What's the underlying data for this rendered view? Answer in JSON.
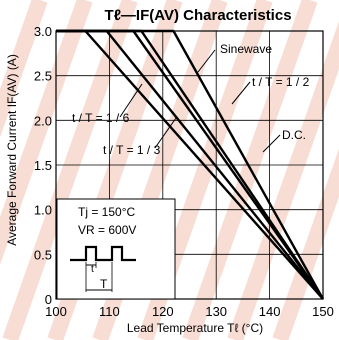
{
  "chart_data": {
    "type": "line",
    "title": "Tℓ—IF(AV)  Characteristics",
    "xlabel": "Lead Temperature  Tℓ (°C)",
    "ylabel": "Average Forward Current  IF(AV) (A)",
    "xlim": [
      100,
      150
    ],
    "ylim": [
      0,
      3.0
    ],
    "x_ticks": [
      "100",
      "110",
      "120",
      "130",
      "140",
      "150"
    ],
    "y_ticks": [
      "0",
      "0.5",
      "1.0",
      "1.5",
      "2.0",
      "2.5",
      "3.0"
    ],
    "grid": true,
    "series": [
      {
        "name": "t/T = 1/6",
        "points": [
          [
            100,
            3.0
          ],
          [
            105.5,
            3.0
          ],
          [
            150,
            0
          ]
        ]
      },
      {
        "name": "t/T = 1/3",
        "points": [
          [
            100,
            3.0
          ],
          [
            109.5,
            3.0
          ],
          [
            150,
            0
          ]
        ]
      },
      {
        "name": "Sinewave",
        "points": [
          [
            100,
            3.0
          ],
          [
            114.5,
            3.0
          ],
          [
            150,
            0
          ]
        ]
      },
      {
        "name": "t/T = 1/2",
        "points": [
          [
            100,
            3.0
          ],
          [
            116,
            3.0
          ],
          [
            150,
            0
          ]
        ]
      },
      {
        "name": "D.C.",
        "points": [
          [
            100,
            3.0
          ],
          [
            122,
            3.0
          ],
          [
            150,
            0
          ]
        ]
      }
    ],
    "annotations": {
      "sinewave": "Sinewave",
      "half": "t / T = 1 / 2",
      "sixth": "t / T = 1 / 6",
      "third": "t / T = 1 / 3",
      "dc": "D.C."
    },
    "inset": {
      "tj": "Tj = 150°C",
      "vr": "VR = 600V",
      "t_label": "t",
      "period_label": "T"
    }
  }
}
